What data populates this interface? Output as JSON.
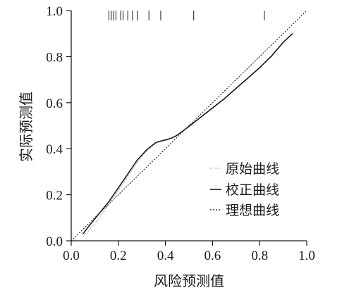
{
  "chart_data": {
    "type": "line",
    "xlabel": "风险预测值",
    "ylabel": "实际预测值",
    "xlim": [
      0,
      1
    ],
    "ylim": [
      0,
      1
    ],
    "x_ticks": [
      "0.0",
      "0.2",
      "0.4",
      "0.6",
      "0.8",
      "1.0"
    ],
    "y_ticks": [
      "0.0",
      "0.2",
      "0.4",
      "0.6",
      "0.8",
      "1.0"
    ],
    "grid": false,
    "legend_position": "bottom-right",
    "legend": [
      "原始曲线",
      "校正曲线",
      "理想曲线"
    ],
    "series": [
      {
        "name": "原始曲线",
        "style": "dotted-light",
        "x": [
          0.05,
          0.08,
          0.12,
          0.16,
          0.2,
          0.24,
          0.28,
          0.32,
          0.36,
          0.38,
          0.4,
          0.42,
          0.44,
          0.46,
          0.5,
          0.55,
          0.6,
          0.65,
          0.7,
          0.75,
          0.8,
          0.85,
          0.9,
          0.94
        ],
        "y": [
          0.02,
          0.05,
          0.1,
          0.16,
          0.22,
          0.28,
          0.34,
          0.39,
          0.425,
          0.432,
          0.437,
          0.443,
          0.452,
          0.465,
          0.495,
          0.535,
          0.575,
          0.615,
          0.66,
          0.705,
          0.75,
          0.8,
          0.86,
          0.905
        ]
      },
      {
        "name": "校正曲线",
        "style": "solid",
        "x": [
          0.05,
          0.08,
          0.12,
          0.16,
          0.2,
          0.24,
          0.28,
          0.32,
          0.36,
          0.38,
          0.4,
          0.42,
          0.44,
          0.46,
          0.5,
          0.55,
          0.6,
          0.65,
          0.7,
          0.75,
          0.8,
          0.85,
          0.9,
          0.94
        ],
        "y": [
          0.03,
          0.07,
          0.12,
          0.17,
          0.23,
          0.29,
          0.35,
          0.395,
          0.427,
          0.433,
          0.438,
          0.444,
          0.453,
          0.466,
          0.497,
          0.537,
          0.577,
          0.617,
          0.662,
          0.707,
          0.752,
          0.802,
          0.862,
          0.9
        ]
      },
      {
        "name": "理想曲线",
        "style": "dashed",
        "x": [
          0,
          1
        ],
        "y": [
          0,
          1
        ]
      }
    ],
    "rug_x": [
      0.16,
      0.17,
      0.18,
      0.19,
      0.21,
      0.22,
      0.24,
      0.26,
      0.28,
      0.33,
      0.38,
      0.52,
      0.82
    ]
  }
}
